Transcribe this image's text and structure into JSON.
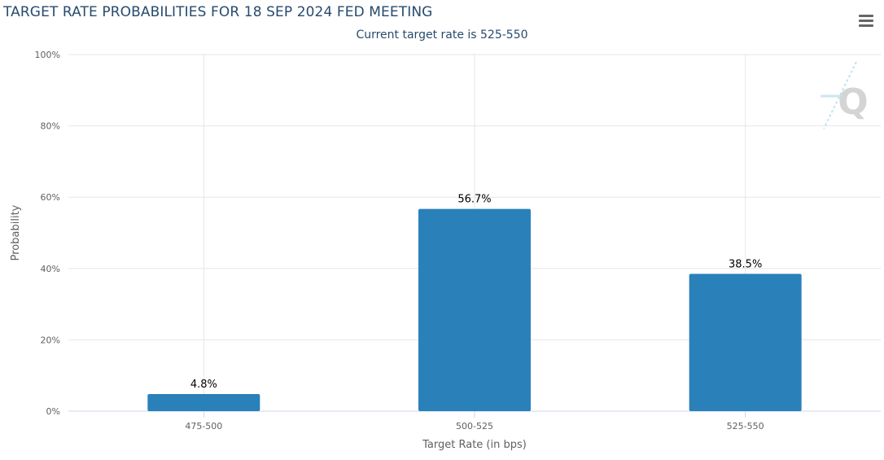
{
  "header": {
    "title": "TARGET RATE PROBABILITIES FOR 18 SEP 2024 FED MEETING",
    "subtitle": "Current target rate is 525-550"
  },
  "toolbar": {
    "menu_icon": "hamburger-menu-icon"
  },
  "watermark": {
    "logo_icon": "q-logo-icon",
    "letter": "Q"
  },
  "colors": {
    "bar": "#2a80b9",
    "grid": "#e6e6e6",
    "title": "#274b6d",
    "axis_text": "#606060"
  },
  "chart_data": {
    "type": "bar",
    "title": "TARGET RATE PROBABILITIES FOR 18 SEP 2024 FED MEETING",
    "subtitle": "Current target rate is 525-550",
    "xlabel": "Target Rate (in bps)",
    "ylabel": "Probability",
    "categories": [
      "475-500",
      "500-525",
      "525-550"
    ],
    "values": [
      4.8,
      56.7,
      38.5
    ],
    "data_labels": [
      "4.8%",
      "56.7%",
      "38.5%"
    ],
    "ylim": [
      0,
      100
    ],
    "yticks": [
      0,
      20,
      40,
      60,
      80,
      100
    ],
    "ytick_labels": [
      "0%",
      "20%",
      "40%",
      "60%",
      "80%",
      "100%"
    ],
    "grid": true,
    "legend": "none"
  }
}
